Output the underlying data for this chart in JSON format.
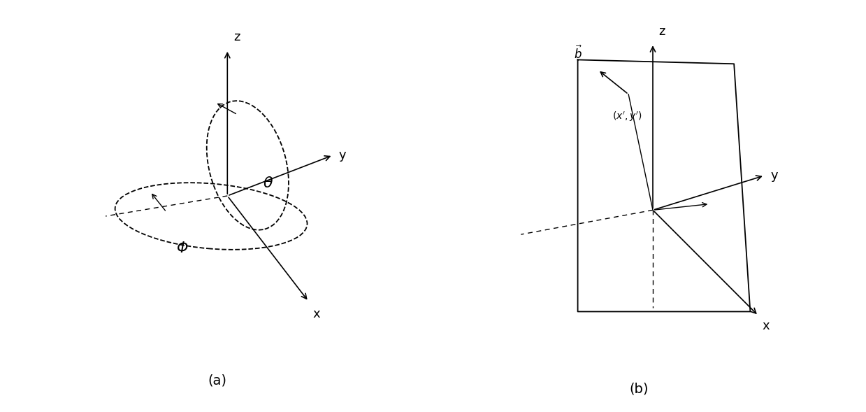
{
  "fig_width": 12.39,
  "fig_height": 5.89,
  "bg_color": "#ffffff",
  "label_a": "(a)",
  "label_b": "(b)",
  "diagram_a": {
    "theta_label": "θ",
    "phi_label": "Φ",
    "x_label": "x",
    "y_label": "y",
    "z_label": "z"
  },
  "diagram_b": {
    "x_label": "x",
    "y_label": "y",
    "z_label": "z",
    "b_label": "$\\vec{b}$",
    "point_label": "$(x', y')$"
  }
}
